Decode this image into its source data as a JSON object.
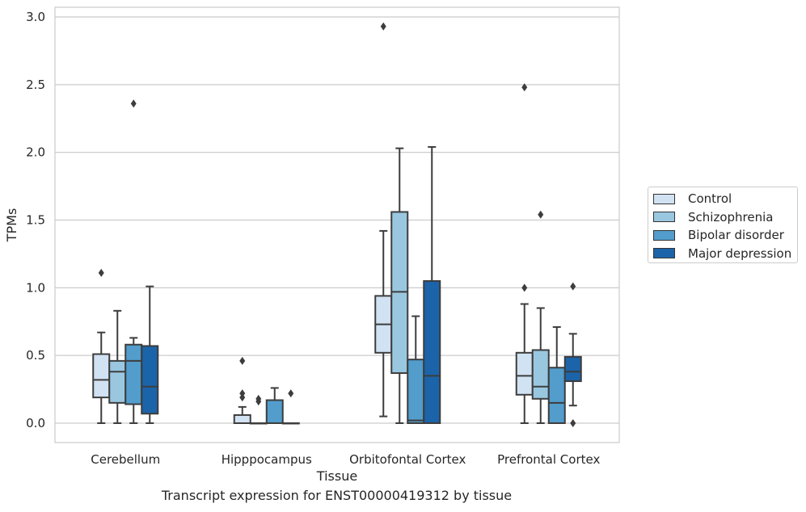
{
  "chart_data": {
    "type": "box",
    "xlabel": "Tissue",
    "ylabel": "TPMs",
    "caption": "Transcript expression for ENST00000419312 by tissue",
    "ylim": [
      -0.14,
      3.08
    ],
    "yticks": [
      "0.0",
      "0.5",
      "1.0",
      "1.5",
      "2.0",
      "2.5",
      "3.0"
    ],
    "grid": "horizontal",
    "legend_position": "right",
    "categories": [
      "Cerebellum",
      "Hipppocampus",
      "Orbitofontal Cortex",
      "Prefrontal Cortex"
    ],
    "series": [
      {
        "name": "Control",
        "color": "#d1e2f2",
        "boxes": [
          {
            "q1": 0.19,
            "median": 0.32,
            "q3": 0.51,
            "whisker_low": 0.0,
            "whisker_high": 0.67,
            "outliers": [
              1.11
            ]
          },
          {
            "q1": 0.0,
            "median": 0.0,
            "q3": 0.06,
            "whisker_low": 0.0,
            "whisker_high": 0.12,
            "outliers": [
              0.19,
              0.22,
              0.46
            ]
          },
          {
            "q1": 0.52,
            "median": 0.73,
            "q3": 0.94,
            "whisker_low": 0.05,
            "whisker_high": 1.42,
            "outliers": [
              2.93
            ]
          },
          {
            "q1": 0.21,
            "median": 0.35,
            "q3": 0.52,
            "whisker_low": 0.0,
            "whisker_high": 0.88,
            "outliers": [
              1.0,
              2.48
            ]
          }
        ]
      },
      {
        "name": "Schizophrenia",
        "color": "#9ac7e0",
        "boxes": [
          {
            "q1": 0.15,
            "median": 0.38,
            "q3": 0.46,
            "whisker_low": 0.0,
            "whisker_high": 0.83,
            "outliers": []
          },
          {
            "q1": 0.0,
            "median": 0.0,
            "q3": 0.0,
            "whisker_low": 0.0,
            "whisker_high": 0.0,
            "outliers": [
              0.16,
              0.18
            ]
          },
          {
            "q1": 0.37,
            "median": 0.97,
            "q3": 1.56,
            "whisker_low": 0.0,
            "whisker_high": 2.03,
            "outliers": []
          },
          {
            "q1": 0.18,
            "median": 0.27,
            "q3": 0.54,
            "whisker_low": 0.0,
            "whisker_high": 0.85,
            "outliers": [
              1.54
            ]
          }
        ]
      },
      {
        "name": "Bipolar disorder",
        "color": "#529dcc",
        "boxes": [
          {
            "q1": 0.14,
            "median": 0.46,
            "q3": 0.58,
            "whisker_low": 0.0,
            "whisker_high": 0.63,
            "outliers": [
              2.36
            ]
          },
          {
            "q1": 0.0,
            "median": 0.0,
            "q3": 0.17,
            "whisker_low": 0.0,
            "whisker_high": 0.26,
            "outliers": []
          },
          {
            "q1": 0.0,
            "median": 0.02,
            "q3": 0.47,
            "whisker_low": 0.0,
            "whisker_high": 0.79,
            "outliers": []
          },
          {
            "q1": 0.0,
            "median": 0.15,
            "q3": 0.41,
            "whisker_low": 0.0,
            "whisker_high": 0.71,
            "outliers": []
          }
        ]
      },
      {
        "name": "Major depression",
        "color": "#1b64a9",
        "boxes": [
          {
            "q1": 0.07,
            "median": 0.27,
            "q3": 0.57,
            "whisker_low": 0.0,
            "whisker_high": 1.01,
            "outliers": []
          },
          {
            "q1": 0.0,
            "median": 0.0,
            "q3": 0.0,
            "whisker_low": 0.0,
            "whisker_high": 0.0,
            "outliers": [
              0.22
            ]
          },
          {
            "q1": 0.0,
            "median": 0.35,
            "q3": 1.05,
            "whisker_low": 0.0,
            "whisker_high": 2.04,
            "outliers": []
          },
          {
            "q1": 0.31,
            "median": 0.38,
            "q3": 0.49,
            "whisker_low": 0.13,
            "whisker_high": 0.66,
            "outliers": [
              0.0,
              1.01
            ]
          }
        ]
      }
    ]
  }
}
